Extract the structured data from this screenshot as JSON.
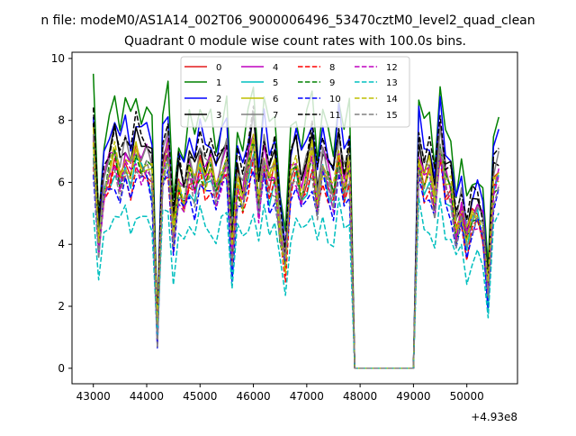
{
  "figure": {
    "suptitle": "n file: modeM0/AS1A14_002T06_9000006496_53470cztM0_level2_quad_clean",
    "title": "Quadrant 0 module wise count rates with 100.0s bins.",
    "x_offset_label": "+4.93e8"
  },
  "chart_data": {
    "type": "line",
    "title": "Quadrant 0 module wise count rates with 100.0s bins.",
    "xlabel": "",
    "ylabel": "",
    "x_offset": 493000000,
    "xlim": [
      42600,
      50950
    ],
    "ylim": [
      -0.5,
      10.2
    ],
    "xticks": [
      43000,
      44000,
      45000,
      46000,
      47000,
      48000,
      49000,
      50000
    ],
    "xtick_labels": [
      "43000",
      "44000",
      "45000",
      "46000",
      "47000",
      "48000",
      "49000",
      "50000"
    ],
    "yticks": [
      0,
      2,
      4,
      6,
      8,
      10
    ],
    "ytick_labels": [
      "0",
      "2",
      "4",
      "6",
      "8",
      "10"
    ],
    "legend_position": "top-center",
    "x": [
      43000,
      43100,
      43200,
      43300,
      43400,
      43500,
      43600,
      43700,
      43800,
      43900,
      44000,
      44100,
      44200,
      44300,
      44400,
      44500,
      44600,
      44700,
      44800,
      44900,
      45000,
      45100,
      45200,
      45300,
      45400,
      45500,
      45600,
      45700,
      45800,
      45900,
      46000,
      46100,
      46200,
      46300,
      46400,
      46500,
      46600,
      46700,
      46800,
      46900,
      47000,
      47100,
      47200,
      47300,
      47400,
      47500,
      47600,
      47700,
      47800,
      47900,
      48000,
      48100,
      48200,
      48300,
      48400,
      48500,
      48600,
      48700,
      48800,
      48900,
      49000,
      49100,
      49200,
      49300,
      49400,
      49500,
      49600,
      49700,
      49800,
      49900,
      50000,
      50100,
      50200,
      50300,
      50400,
      50500,
      50600
    ],
    "base_profile": [
      7.2,
      4.0,
      5.8,
      6.3,
      6.8,
      6.1,
      6.7,
      6.2,
      6.9,
      6.5,
      6.6,
      6.2,
      1.1,
      6.4,
      7.0,
      4.2,
      5.9,
      5.4,
      6.3,
      5.8,
      6.6,
      6.1,
      6.4,
      5.7,
      6.3,
      6.7,
      3.6,
      6.0,
      5.5,
      6.4,
      7.2,
      5.3,
      6.8,
      5.9,
      6.3,
      4.5,
      3.4,
      6.1,
      6.5,
      5.6,
      6.2,
      6.8,
      5.4,
      6.6,
      6.0,
      5.5,
      6.9,
      5.8,
      6.5,
      0.0,
      0.0,
      0.0,
      0.0,
      0.0,
      0.0,
      0.0,
      0.0,
      0.0,
      0.0,
      0.0,
      0.0,
      6.8,
      6.0,
      6.3,
      5.3,
      7.3,
      5.9,
      5.7,
      4.4,
      5.1,
      4.1,
      4.8,
      5.0,
      4.5,
      2.4,
      5.9,
      6.3
    ],
    "series": [
      {
        "name": "0",
        "color": "#e41a1c",
        "dash": "solid",
        "scale": 1.0
      },
      {
        "name": "1",
        "color": "#008000",
        "dash": "solid",
        "scale": 1.28
      },
      {
        "name": "2",
        "color": "#0000ff",
        "dash": "solid",
        "scale": 1.18
      },
      {
        "name": "3",
        "color": "#000000",
        "dash": "solid",
        "scale": 1.1
      },
      {
        "name": "4",
        "color": "#bf00bf",
        "dash": "solid",
        "scale": 1.04
      },
      {
        "name": "5",
        "color": "#00bfbf",
        "dash": "solid",
        "scale": 0.96
      },
      {
        "name": "6",
        "color": "#bfbf00",
        "dash": "solid",
        "scale": 1.02
      },
      {
        "name": "7",
        "color": "#808080",
        "dash": "solid",
        "scale": 1.06
      },
      {
        "name": "8",
        "color": "#ff0000",
        "dash": "dashed",
        "scale": 0.94
      },
      {
        "name": "9",
        "color": "#008000",
        "dash": "dashed",
        "scale": 0.99
      },
      {
        "name": "10",
        "color": "#0000ff",
        "dash": "dashed",
        "scale": 0.9
      },
      {
        "name": "11",
        "color": "#000000",
        "dash": "dashed",
        "scale": 1.14
      },
      {
        "name": "12",
        "color": "#bf00bf",
        "dash": "dashed",
        "scale": 0.97
      },
      {
        "name": "13",
        "color": "#00bfbf",
        "dash": "dashed",
        "scale": 0.74
      },
      {
        "name": "14",
        "color": "#bfbf00",
        "dash": "dashed",
        "scale": 1.01
      },
      {
        "name": "15",
        "color": "#808080",
        "dash": "dashed",
        "scale": 0.95
      }
    ]
  }
}
